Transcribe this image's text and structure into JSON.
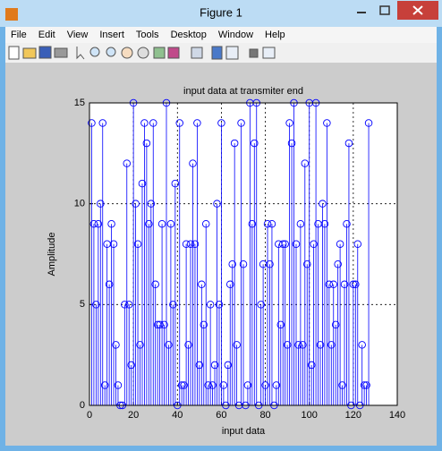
{
  "window": {
    "title": "Figure 1",
    "menu": [
      "File",
      "Edit",
      "View",
      "Insert",
      "Tools",
      "Desktop",
      "Window",
      "Help"
    ]
  },
  "chart_data": {
    "type": "stem",
    "title": "input data at transmiter end",
    "xlabel": "input data",
    "ylabel": "Amplitude",
    "x": [
      1,
      2,
      3,
      4,
      5,
      6,
      7,
      8,
      9,
      10,
      11,
      12,
      13,
      14,
      15,
      16,
      17,
      18,
      19,
      20,
      21,
      22,
      23,
      24,
      25,
      26,
      27,
      28,
      29,
      30,
      31,
      32,
      33,
      34,
      35,
      36,
      37,
      38,
      39,
      40,
      41,
      42,
      43,
      44,
      45,
      46,
      47,
      48,
      49,
      50,
      51,
      52,
      53,
      54,
      55,
      56,
      57,
      58,
      59,
      60,
      61,
      62,
      63,
      64,
      65,
      66,
      67,
      68,
      69,
      70,
      71,
      72,
      73,
      74,
      75,
      76,
      77,
      78,
      79,
      80,
      81,
      82,
      83,
      84,
      85,
      86,
      87,
      88,
      89,
      90,
      91,
      92,
      93,
      94,
      95,
      96,
      97,
      98,
      99,
      100,
      101,
      102,
      103,
      104,
      105,
      106,
      107,
      108,
      109,
      110,
      111,
      112,
      113,
      114,
      115,
      116,
      117,
      118,
      119,
      120,
      121,
      122,
      123,
      124,
      125,
      126,
      127
    ],
    "values": [
      14,
      9,
      5,
      9,
      10,
      14,
      1,
      8,
      6,
      9,
      8,
      3,
      1,
      0,
      0,
      5,
      12,
      5,
      2,
      15,
      10,
      8,
      3,
      11,
      14,
      13,
      9,
      10,
      14,
      6,
      4,
      4,
      9,
      4,
      15,
      3,
      9,
      5,
      11,
      0,
      14,
      1,
      1,
      8,
      3,
      8,
      12,
      8,
      14,
      2,
      6,
      4,
      9,
      1,
      5,
      1,
      2,
      10,
      5,
      14,
      1,
      0,
      2,
      6,
      7,
      13,
      3,
      0,
      14,
      7,
      0,
      1,
      15,
      9,
      13,
      15,
      0,
      5,
      7,
      1,
      9,
      7,
      9,
      0,
      1,
      8,
      4,
      8,
      8,
      3,
      14,
      13,
      15,
      8,
      3,
      9,
      3,
      12,
      7,
      15,
      2,
      8,
      15,
      9,
      3,
      10,
      9,
      14,
      6,
      3,
      6,
      4,
      7,
      8,
      1,
      6,
      9,
      13,
      0,
      6,
      6,
      8,
      0,
      3,
      1,
      1,
      14
    ],
    "color": "#0000ff",
    "xlim": [
      0,
      140
    ],
    "ylim": [
      0,
      15
    ],
    "xticks": [
      0,
      20,
      40,
      60,
      80,
      100,
      120,
      140
    ],
    "yticks": [
      0,
      5,
      10,
      15
    ],
    "grid": true
  }
}
